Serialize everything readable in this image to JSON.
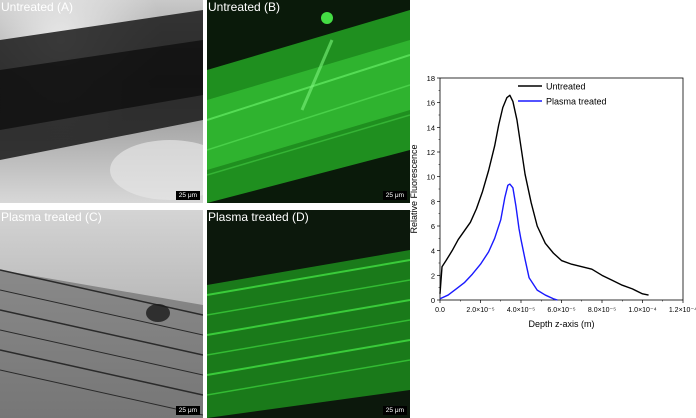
{
  "panels": [
    {
      "id": "A",
      "label": "Untreated (A)",
      "scale": "25 μm"
    },
    {
      "id": "B",
      "label": "Untreated (B)",
      "scale": "25 μm"
    },
    {
      "id": "C",
      "label": "Plasma treated (C)",
      "scale": "25 μm"
    },
    {
      "id": "D",
      "label": "Plasma treated (D)",
      "scale": "25 μm"
    }
  ],
  "colors": {
    "untreated": "#000000",
    "plasma": "#1a1aff",
    "fluorescence": "#2ecc2e"
  },
  "chart_data": {
    "type": "line",
    "title": "",
    "xlabel": "Depth z-axis (m)",
    "ylabel": "Relative Fluorescence",
    "xlim": [
      0,
      0.00012
    ],
    "ylim": [
      0,
      18
    ],
    "xticks": [
      0,
      2e-05,
      4e-05,
      6e-05,
      8e-05,
      0.0001,
      0.00012
    ],
    "xtick_labels": [
      "0.0",
      "2.0×10⁻⁵",
      "4.0×10⁻⁵",
      "6.0×10⁻⁵",
      "8.0×10⁻⁵",
      "1.0×10⁻⁴",
      "1.2×10⁻⁴"
    ],
    "yticks": [
      0,
      2,
      4,
      6,
      8,
      10,
      12,
      14,
      16,
      18
    ],
    "ytick_labels": [
      "0",
      "2",
      "4",
      "6",
      "8",
      "10",
      "12",
      "14",
      "16",
      "18"
    ],
    "legend_position": "top-right",
    "series": [
      {
        "name": "Untreated",
        "color": "#000000",
        "x": [
          0,
          1e-06,
          3e-06,
          6e-06,
          9e-06,
          1.2e-05,
          1.5e-05,
          1.8e-05,
          2.1e-05,
          2.4e-05,
          2.7e-05,
          2.9e-05,
          3.1e-05,
          3.3e-05,
          3.45e-05,
          3.6e-05,
          3.8e-05,
          4e-05,
          4.2e-05,
          4.5e-05,
          4.8e-05,
          5.2e-05,
          5.6e-05,
          6e-05,
          6.5e-05,
          7e-05,
          7.5e-05,
          8e-05,
          8.5e-05,
          9e-05,
          9.5e-05,
          0.0001,
          0.000103
        ],
        "y": [
          0.5,
          2.7,
          3.2,
          4.0,
          4.9,
          5.6,
          6.3,
          7.4,
          8.8,
          10.5,
          12.5,
          14.2,
          15.6,
          16.4,
          16.6,
          16.1,
          14.6,
          12.4,
          10.2,
          7.9,
          6.0,
          4.6,
          3.8,
          3.2,
          2.9,
          2.7,
          2.5,
          2.0,
          1.6,
          1.2,
          0.9,
          0.5,
          0.4
        ]
      },
      {
        "name": "Plasma treated",
        "color": "#1a1aff",
        "x": [
          0,
          4e-06,
          8e-06,
          1.2e-05,
          1.6e-05,
          2e-05,
          2.4e-05,
          2.7e-05,
          3e-05,
          3.2e-05,
          3.35e-05,
          3.45e-05,
          3.6e-05,
          3.75e-05,
          3.9e-05,
          4e-05,
          4.2e-05,
          4.4e-05,
          4.8e-05,
          5.2e-05,
          5.6e-05,
          5.8e-05
        ],
        "y": [
          0.1,
          0.4,
          0.9,
          1.4,
          2.1,
          2.9,
          3.9,
          5.0,
          6.5,
          8.3,
          9.3,
          9.4,
          9.1,
          7.6,
          5.8,
          4.9,
          3.3,
          1.8,
          0.8,
          0.4,
          0.1,
          0.0
        ]
      }
    ]
  }
}
